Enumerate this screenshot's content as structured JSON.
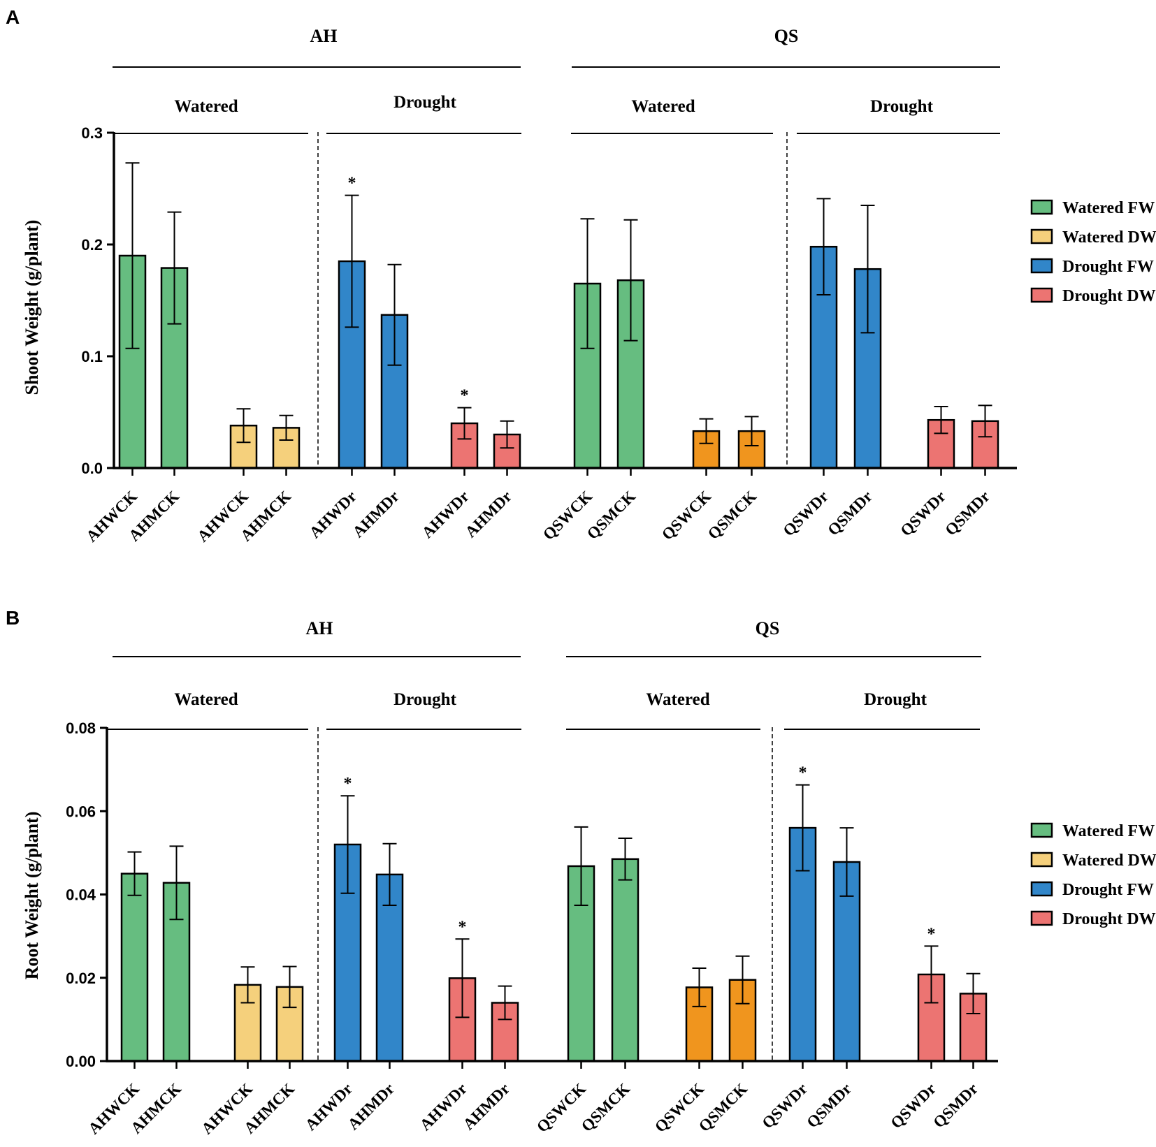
{
  "colors": {
    "watered_fw": "#66bd80",
    "watered_dw": "#f5d07c",
    "drought_fw": "#3186c9",
    "drought_dw": "#ec7472",
    "orange_dw": "#f0951e",
    "axis": "#000000"
  },
  "legend": [
    {
      "label": "Watered FW",
      "color_key": "watered_fw"
    },
    {
      "label": "Watered DW",
      "color_key": "watered_dw"
    },
    {
      "label": "Drought FW",
      "color_key": "drought_fw"
    },
    {
      "label": "Drought DW",
      "color_key": "drought_dw"
    }
  ],
  "chart_data": [
    {
      "panel": "A",
      "type": "bar",
      "ylabel": "Shoot Weight  (g/plant)",
      "ylim": [
        0,
        0.3
      ],
      "yticks": [
        "0.0",
        "0.1",
        "0.2",
        "0.3"
      ],
      "ytick_values": [
        0,
        0.1,
        0.2,
        0.3
      ],
      "groups": [
        "AH",
        "QS"
      ],
      "conditions": [
        "Watered",
        "Drought",
        "Watered",
        "Drought"
      ],
      "bars": [
        {
          "label": "AHWCK",
          "value": 0.19,
          "err": 0.083,
          "color_key": "watered_fw",
          "sig": ""
        },
        {
          "label": "AHMCK",
          "value": 0.179,
          "err": 0.05,
          "color_key": "watered_fw",
          "sig": ""
        },
        {
          "label": "AHWCK",
          "value": 0.038,
          "err": 0.015,
          "color_key": "watered_dw",
          "sig": ""
        },
        {
          "label": "AHMCK",
          "value": 0.036,
          "err": 0.011,
          "color_key": "watered_dw",
          "sig": ""
        },
        {
          "label": "AHWDr",
          "value": 0.185,
          "err": 0.059,
          "color_key": "drought_fw",
          "sig": "*"
        },
        {
          "label": "AHMDr",
          "value": 0.137,
          "err": 0.045,
          "color_key": "drought_fw",
          "sig": ""
        },
        {
          "label": "AHWDr",
          "value": 0.04,
          "err": 0.014,
          "color_key": "drought_dw",
          "sig": "*"
        },
        {
          "label": "AHMDr",
          "value": 0.03,
          "err": 0.012,
          "color_key": "drought_dw",
          "sig": ""
        },
        {
          "label": "QSWCK",
          "value": 0.165,
          "err": 0.058,
          "color_key": "watered_fw",
          "sig": ""
        },
        {
          "label": "QSMCK",
          "value": 0.168,
          "err": 0.054,
          "color_key": "watered_fw",
          "sig": ""
        },
        {
          "label": "QSWCK",
          "value": 0.033,
          "err": 0.011,
          "color_key": "orange_dw",
          "sig": ""
        },
        {
          "label": "QSMCK",
          "value": 0.033,
          "err": 0.013,
          "color_key": "orange_dw",
          "sig": ""
        },
        {
          "label": "QSWDr",
          "value": 0.198,
          "err": 0.043,
          "color_key": "drought_fw",
          "sig": ""
        },
        {
          "label": "QSMDr",
          "value": 0.178,
          "err": 0.057,
          "color_key": "drought_fw",
          "sig": ""
        },
        {
          "label": "QSWDr",
          "value": 0.043,
          "err": 0.012,
          "color_key": "drought_dw",
          "sig": ""
        },
        {
          "label": "QSMDr",
          "value": 0.042,
          "err": 0.014,
          "color_key": "drought_dw",
          "sig": ""
        }
      ]
    },
    {
      "panel": "B",
      "type": "bar",
      "ylabel": "Root Weight  (g/plant)",
      "ylim": [
        0,
        0.08
      ],
      "yticks": [
        "0.00",
        "0.02",
        "0.04",
        "0.06",
        "0.08"
      ],
      "ytick_values": [
        0,
        0.02,
        0.04,
        0.06,
        0.08
      ],
      "groups": [
        "AH",
        "QS"
      ],
      "conditions": [
        "Watered",
        "Drought",
        "Watered",
        "Drought"
      ],
      "bars": [
        {
          "label": "AHWCK",
          "value": 0.045,
          "err": 0.0052,
          "color_key": "watered_fw",
          "sig": ""
        },
        {
          "label": "AHMCK",
          "value": 0.0428,
          "err": 0.0088,
          "color_key": "watered_fw",
          "sig": ""
        },
        {
          "label": "AHWCK",
          "value": 0.0183,
          "err": 0.0043,
          "color_key": "watered_dw",
          "sig": ""
        },
        {
          "label": "AHMCK",
          "value": 0.0178,
          "err": 0.0049,
          "color_key": "watered_dw",
          "sig": ""
        },
        {
          "label": "AHWDr",
          "value": 0.052,
          "err": 0.0117,
          "color_key": "drought_fw",
          "sig": "*"
        },
        {
          "label": "AHMDr",
          "value": 0.0448,
          "err": 0.0074,
          "color_key": "drought_fw",
          "sig": ""
        },
        {
          "label": "AHWDr",
          "value": 0.0199,
          "err": 0.0094,
          "color_key": "drought_dw",
          "sig": "*"
        },
        {
          "label": "AHMDr",
          "value": 0.014,
          "err": 0.004,
          "color_key": "drought_dw",
          "sig": ""
        },
        {
          "label": "QSWCK",
          "value": 0.0468,
          "err": 0.0094,
          "color_key": "watered_fw",
          "sig": ""
        },
        {
          "label": "QSMCK",
          "value": 0.0485,
          "err": 0.005,
          "color_key": "watered_fw",
          "sig": ""
        },
        {
          "label": "QSWCK",
          "value": 0.0177,
          "err": 0.0046,
          "color_key": "orange_dw",
          "sig": ""
        },
        {
          "label": "QSMCK",
          "value": 0.0195,
          "err": 0.0057,
          "color_key": "orange_dw",
          "sig": ""
        },
        {
          "label": "QSWDr",
          "value": 0.056,
          "err": 0.0103,
          "color_key": "drought_fw",
          "sig": "*"
        },
        {
          "label": "QSMDr",
          "value": 0.0478,
          "err": 0.0082,
          "color_key": "drought_fw",
          "sig": ""
        },
        {
          "label": "QSWDr",
          "value": 0.0208,
          "err": 0.0068,
          "color_key": "drought_dw",
          "sig": "*"
        },
        {
          "label": "QSMDr",
          "value": 0.0162,
          "err": 0.0048,
          "color_key": "drought_dw",
          "sig": ""
        }
      ]
    }
  ]
}
